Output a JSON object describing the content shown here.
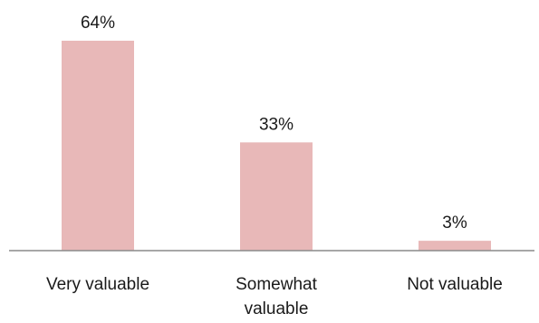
{
  "chart_data": {
    "type": "bar",
    "title": "",
    "xlabel": "",
    "ylabel": "",
    "categories": [
      "Very valuable",
      "Somewhat valuable",
      "Not valuable"
    ],
    "category_lines": [
      [
        "Very valuable"
      ],
      [
        "Somewhat",
        "valuable"
      ],
      [
        "Not valuable"
      ]
    ],
    "values": [
      64,
      33,
      3
    ],
    "value_labels": [
      "64%",
      "33%",
      "3%"
    ],
    "ylim": [
      0,
      64
    ],
    "grid": false,
    "legend": "none",
    "bar_color": "#e8b8b8",
    "axis_color": "#8a8a8a"
  }
}
